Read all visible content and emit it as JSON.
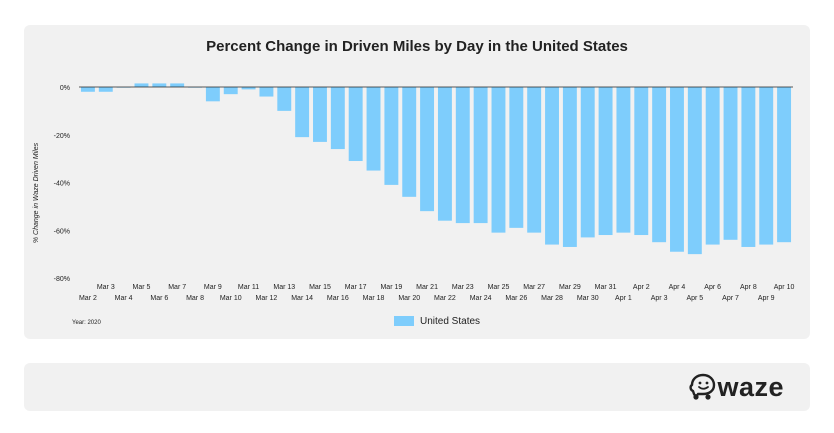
{
  "chart_data": {
    "type": "bar",
    "title": "Percent Change in Driven Miles by Day in the United States",
    "ylabel": "% Change in Waze Driven Miles",
    "xlabel": "",
    "ylim": [
      -80,
      0
    ],
    "yticks": [
      0,
      -20,
      -40,
      -60,
      -80
    ],
    "ytick_labels": [
      "0%",
      "-20%",
      "-40%",
      "-60%",
      "-80%"
    ],
    "grid": false,
    "legend_position": "bottom-center",
    "bar_color": "#7ecdfc",
    "categories": [
      "Mar 2",
      "Mar 3",
      "Mar 4",
      "Mar 5",
      "Mar 6",
      "Mar 7",
      "Mar 8",
      "Mar 9",
      "Mar 10",
      "Mar 11",
      "Mar 12",
      "Mar 13",
      "Mar 14",
      "Mar 15",
      "Mar 16",
      "Mar 17",
      "Mar 18",
      "Mar 19",
      "Mar 20",
      "Mar 21",
      "Mar 22",
      "Mar 23",
      "Mar 24",
      "Mar 25",
      "Mar 26",
      "Mar 27",
      "Mar 28",
      "Mar 29",
      "Mar 30",
      "Mar 31",
      "Apr 1",
      "Apr 2",
      "Apr 3",
      "Apr 4",
      "Apr 5",
      "Apr 6",
      "Apr 7",
      "Apr 8",
      "Apr 9",
      "Apr 10"
    ],
    "series": [
      {
        "name": "United States",
        "values": [
          -2,
          -2,
          0,
          1.5,
          1.5,
          1.5,
          0,
          -6,
          -3,
          -1,
          -4,
          -10,
          -21,
          -23,
          -26,
          -31,
          -35,
          -41,
          -46,
          -52,
          -56,
          -57,
          -57,
          -61,
          -59,
          -61,
          -66,
          -67,
          -63,
          -62,
          -61,
          -62,
          -65,
          -69,
          -70,
          -66,
          -64,
          -67,
          -66,
          -65
        ]
      }
    ]
  },
  "chart_meta": {
    "year_note": "Year: 2020"
  },
  "footer": {
    "brand": "waze"
  }
}
